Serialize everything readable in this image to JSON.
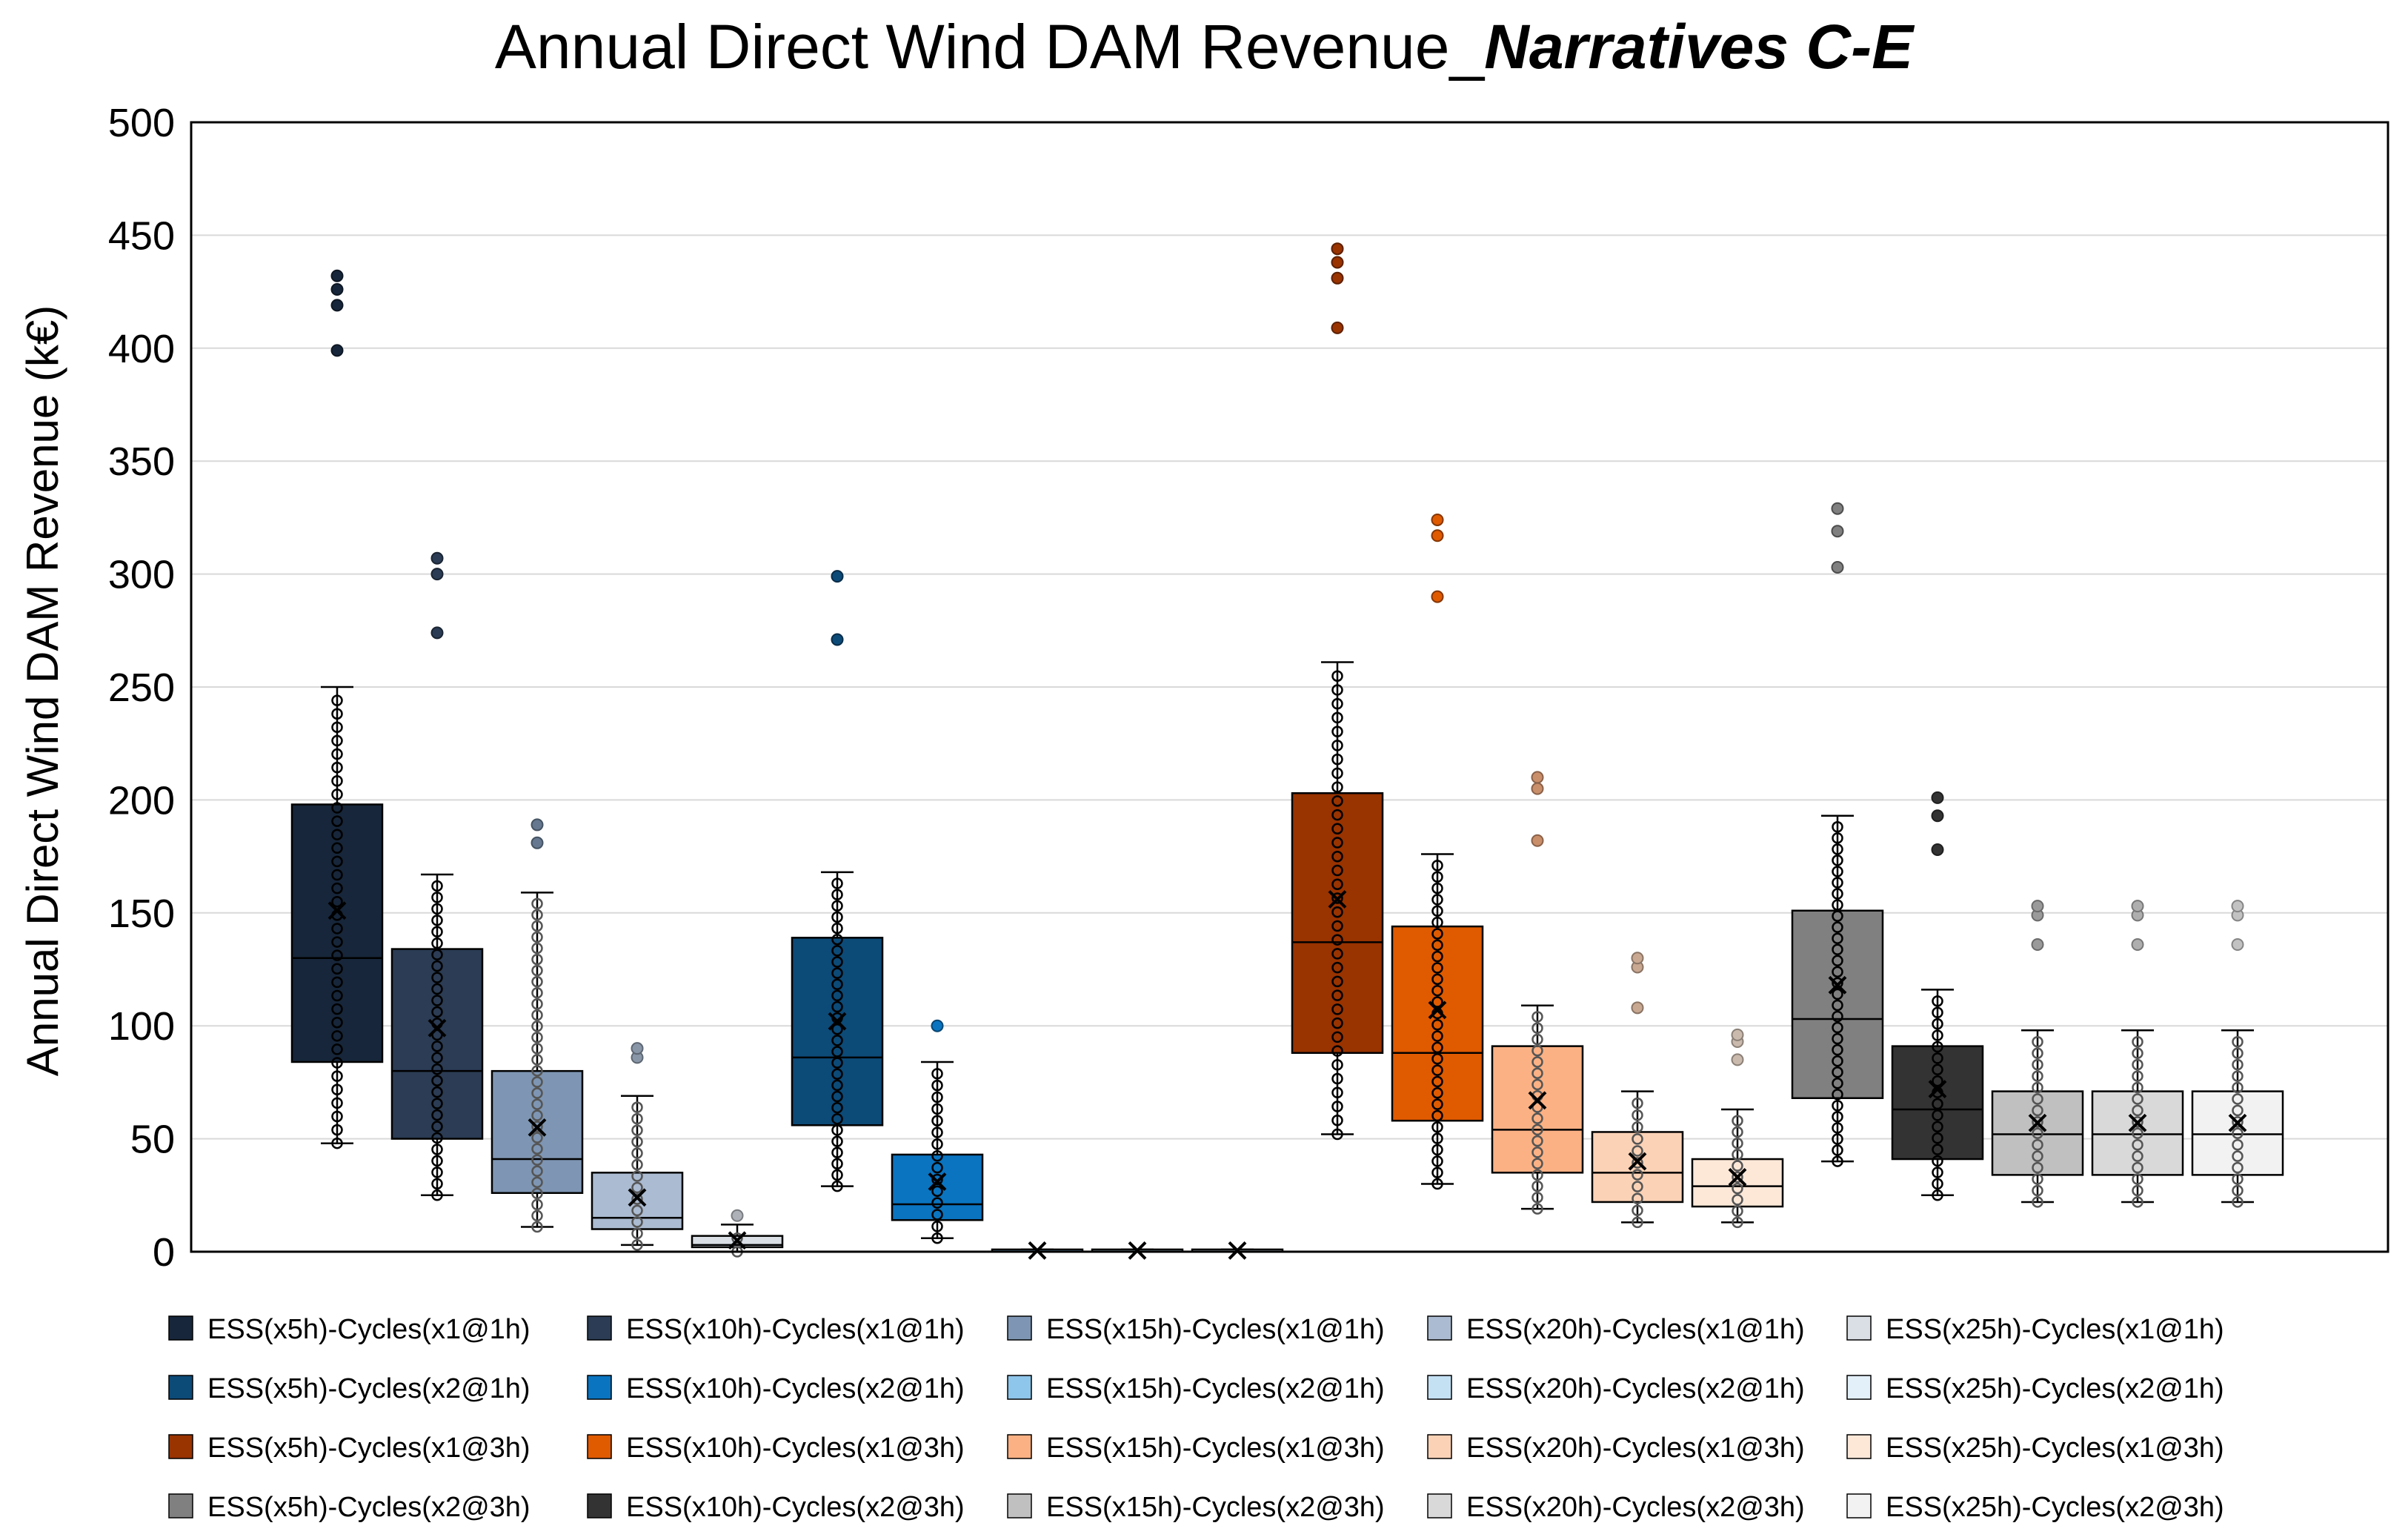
{
  "chart_data": {
    "type": "box",
    "title": "Annual Direct Wind DAM Revenue_",
    "title_emphasis": "Narratives C-E",
    "xlabel": "",
    "ylabel": "Annual Direct Wind DAM Revenue (k€)",
    "ylim": [
      0,
      500
    ],
    "yticks": [
      "0",
      "50",
      "100",
      "150",
      "200",
      "250",
      "300",
      "350",
      "400",
      "450",
      "500"
    ],
    "grid": true,
    "legend_position": "bottom",
    "series": [
      {
        "name": "ESS(x5h)-Cycles(x1@1h)",
        "color": "#17263a",
        "min": 48,
        "q1": 84,
        "median": 130,
        "q3": 198,
        "max": 250,
        "mean": 151,
        "outliers": [
          399,
          419,
          426,
          432
        ]
      },
      {
        "name": "ESS(x10h)-Cycles(x1@1h)",
        "color": "#2b3c54",
        "min": 25,
        "q1": 50,
        "median": 80,
        "q3": 134,
        "max": 167,
        "mean": 99,
        "outliers": [
          274,
          300,
          307
        ]
      },
      {
        "name": "ESS(x15h)-Cycles(x1@1h)",
        "color": "#7e96b3",
        "min": 11,
        "q1": 26,
        "median": 41,
        "q3": 80,
        "max": 159,
        "mean": 55,
        "outliers": [
          181,
          189
        ]
      },
      {
        "name": "ESS(x20h)-Cycles(x1@1h)",
        "color": "#abbbd1",
        "min": 3,
        "q1": 10,
        "median": 15,
        "q3": 35,
        "max": 69,
        "mean": 24,
        "outliers": [
          86,
          90
        ]
      },
      {
        "name": "ESS(x25h)-Cycles(x1@1h)",
        "color": "#dadfe6",
        "min": 0,
        "q1": 2,
        "median": 3,
        "q3": 7,
        "max": 12,
        "mean": 5,
        "outliers": [
          16
        ]
      },
      {
        "name": "ESS(x5h)-Cycles(x2@1h)",
        "color": "#0c4a78",
        "min": 29,
        "q1": 56,
        "median": 86,
        "q3": 139,
        "max": 168,
        "mean": 102,
        "outliers": [
          271,
          299
        ]
      },
      {
        "name": "ESS(x10h)-Cycles(x2@1h)",
        "color": "#0a74c0",
        "min": 6,
        "q1": 14,
        "median": 21,
        "q3": 43,
        "max": 84,
        "mean": 31,
        "outliers": [
          100
        ]
      },
      {
        "name": "ESS(x15h)-Cycles(x2@1h)",
        "color": "#8ec5ea",
        "min": 0,
        "q1": 0,
        "median": 0,
        "q3": 1,
        "max": 1,
        "mean": 0.5,
        "outliers": []
      },
      {
        "name": "ESS(x20h)-Cycles(x2@1h)",
        "color": "#c4e1f4",
        "min": 0,
        "q1": 0,
        "median": 0,
        "q3": 1,
        "max": 1,
        "mean": 0.5,
        "outliers": []
      },
      {
        "name": "ESS(x25h)-Cycles(x2@1h)",
        "color": "#e3f0f9",
        "min": 0,
        "q1": 0,
        "median": 0,
        "q3": 1,
        "max": 1,
        "mean": 0.5,
        "outliers": []
      },
      {
        "name": "ESS(x5h)-Cycles(x1@3h)",
        "color": "#993300",
        "min": 52,
        "q1": 88,
        "median": 137,
        "q3": 203,
        "max": 261,
        "mean": 156,
        "outliers": [
          409,
          431,
          438,
          444
        ]
      },
      {
        "name": "ESS(x10h)-Cycles(x1@3h)",
        "color": "#e05a00",
        "min": 30,
        "q1": 58,
        "median": 88,
        "q3": 144,
        "max": 176,
        "mean": 107,
        "outliers": [
          290,
          317,
          324
        ]
      },
      {
        "name": "ESS(x15h)-Cycles(x1@3h)",
        "color": "#fbb184",
        "min": 19,
        "q1": 35,
        "median": 54,
        "q3": 91,
        "max": 109,
        "mean": 67,
        "outliers": [
          182,
          205,
          210
        ]
      },
      {
        "name": "ESS(x20h)-Cycles(x1@3h)",
        "color": "#fbd2b6",
        "min": 13,
        "q1": 22,
        "median": 35,
        "q3": 53,
        "max": 71,
        "mean": 40,
        "outliers": [
          108,
          126,
          130
        ]
      },
      {
        "name": "ESS(x25h)-Cycles(x1@3h)",
        "color": "#fde8d8",
        "min": 13,
        "q1": 20,
        "median": 29,
        "q3": 41,
        "max": 63,
        "mean": 33,
        "outliers": [
          85,
          93,
          96
        ]
      },
      {
        "name": "ESS(x5h)-Cycles(x2@3h)",
        "color": "#808080",
        "min": 40,
        "q1": 68,
        "median": 103,
        "q3": 151,
        "max": 193,
        "mean": 118,
        "outliers": [
          303,
          319,
          329
        ]
      },
      {
        "name": "ESS(x10h)-Cycles(x2@3h)",
        "color": "#333333",
        "min": 25,
        "q1": 41,
        "median": 63,
        "q3": 91,
        "max": 116,
        "mean": 72,
        "outliers": [
          178,
          193,
          201
        ]
      },
      {
        "name": "ESS(x15h)-Cycles(x2@3h)",
        "color": "#c0c0c0",
        "min": 22,
        "q1": 34,
        "median": 52,
        "q3": 71,
        "max": 98,
        "mean": 57,
        "outliers": [
          136,
          149,
          153
        ]
      },
      {
        "name": "ESS(x20h)-Cycles(x2@3h)",
        "color": "#d9d9d9",
        "min": 22,
        "q1": 34,
        "median": 52,
        "q3": 71,
        "max": 98,
        "mean": 57,
        "outliers": [
          136,
          149,
          153
        ]
      },
      {
        "name": "ESS(x25h)-Cycles(x2@3h)",
        "color": "#f2f2f2",
        "min": 22,
        "q1": 34,
        "median": 52,
        "q3": 71,
        "max": 98,
        "mean": 57,
        "outliers": [
          136,
          149,
          153
        ]
      }
    ]
  }
}
